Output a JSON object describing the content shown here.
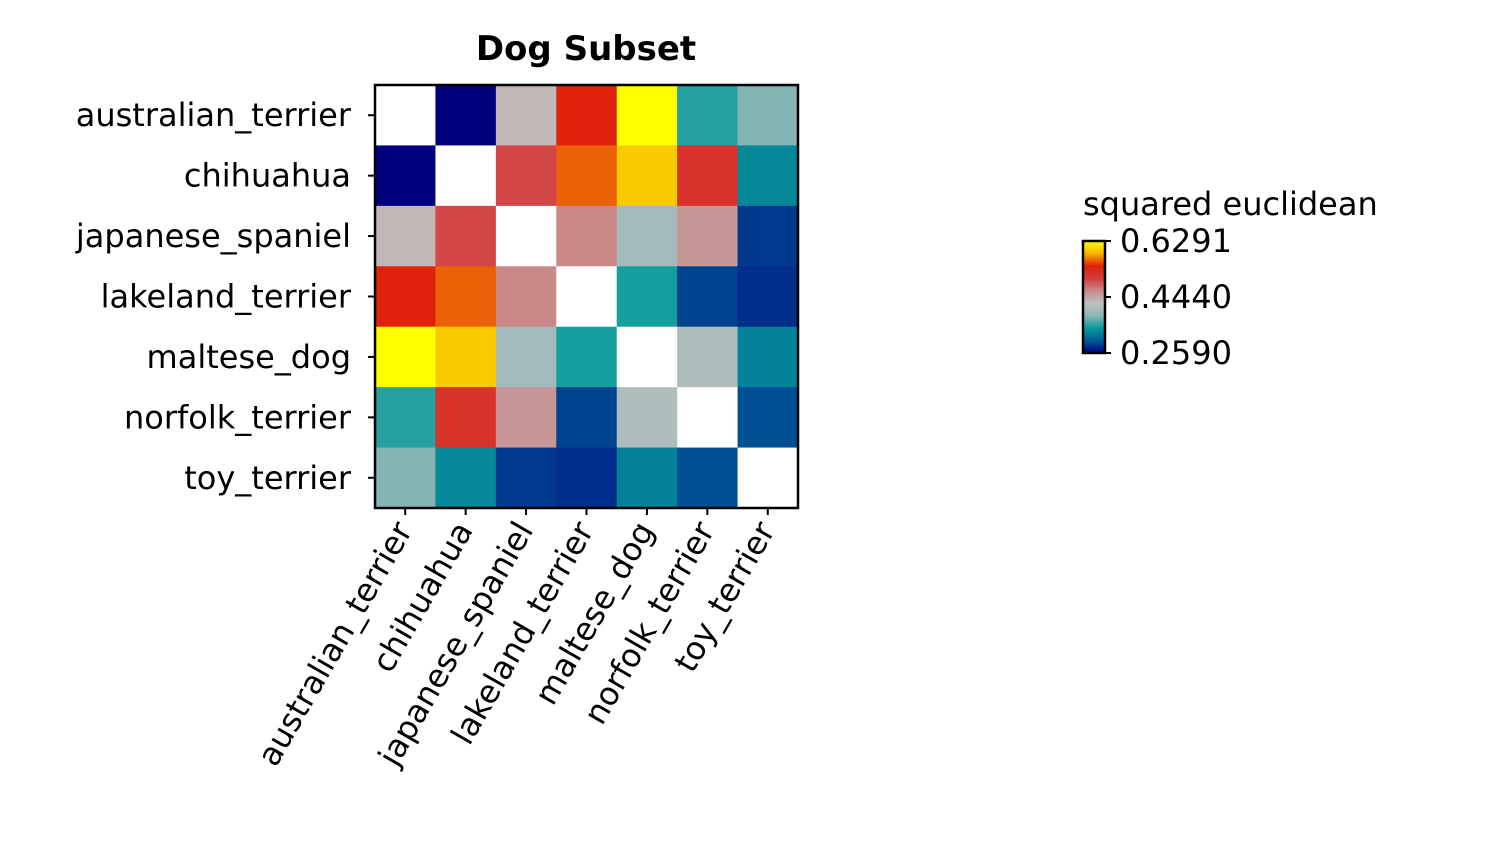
{
  "chart_data": {
    "type": "heatmap",
    "title": "Dog Subset",
    "xlabel": "",
    "ylabel": "",
    "rows": [
      "australian_terrier",
      "chihuahua",
      "japanese_spaniel",
      "lakeland_terrier",
      "maltese_dog",
      "norfolk_terrier",
      "toy_terrier"
    ],
    "columns": [
      "australian_terrier",
      "chihuahua",
      "japanese_spaniel",
      "lakeland_terrier",
      "maltese_dog",
      "norfolk_terrier",
      "toy_terrier"
    ],
    "values": [
      [
        null,
        0.259,
        0.43,
        0.545,
        0.629,
        0.35,
        0.38
      ],
      [
        0.259,
        null,
        0.5,
        0.565,
        0.6,
        0.52,
        0.33
      ],
      [
        0.43,
        0.5,
        null,
        0.465,
        0.4,
        0.455,
        0.285
      ],
      [
        0.545,
        0.565,
        0.465,
        null,
        0.345,
        0.29,
        0.28
      ],
      [
        0.629,
        0.6,
        0.4,
        0.345,
        null,
        0.41,
        0.325
      ],
      [
        0.35,
        0.52,
        0.455,
        0.29,
        0.41,
        null,
        0.295
      ],
      [
        0.38,
        0.33,
        0.285,
        0.28,
        0.325,
        0.295,
        null
      ]
    ],
    "diagonal_color": "#ffffff",
    "colorbar": {
      "label": "squared euclidean",
      "min": 0.259,
      "max": 0.6291,
      "ticks": [
        "0.6291",
        "0.4440",
        "0.2590"
      ],
      "stops": [
        "#00007f",
        "#005a96",
        "#0a9a9c",
        "#8cb6b6",
        "#c0c0c0",
        "#c98a8a",
        "#d33b3b",
        "#e0200c",
        "#f8b400",
        "#ffff00"
      ]
    },
    "grid": false,
    "legend_position": "right"
  }
}
